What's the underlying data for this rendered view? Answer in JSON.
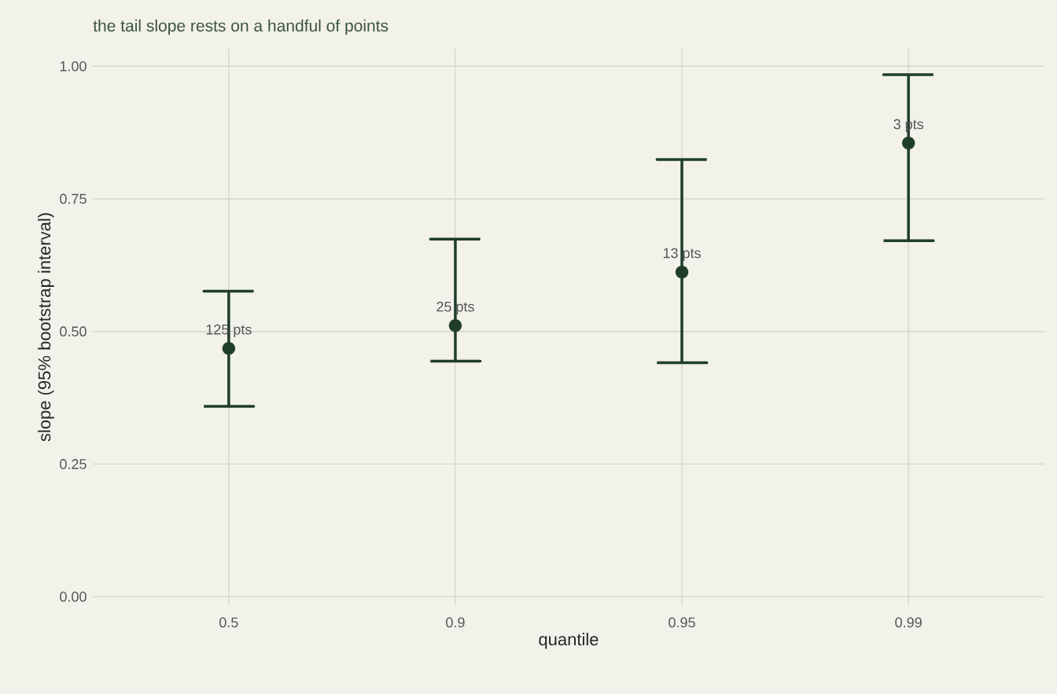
{
  "chart_data": {
    "type": "scatter",
    "title": "the tail slope rests on a handful of points",
    "xlabel": "quantile",
    "ylabel": "slope (95% bootstrap interval)",
    "categories": [
      "0.5",
      "0.9",
      "0.95",
      "0.99"
    ],
    "values": [
      0.468,
      0.511,
      0.612,
      0.855
    ],
    "errors": [
      [
        0.359,
        0.576
      ],
      [
        0.444,
        0.674
      ],
      [
        0.441,
        0.824
      ],
      [
        0.671,
        0.984
      ]
    ],
    "annotations": [
      {
        "text": "125 pts",
        "x": "0.5",
        "y": 0.468
      },
      {
        "text": "25 pts",
        "x": "0.9",
        "y": 0.511
      },
      {
        "text": "13 pts",
        "x": "0.95",
        "y": 0.612
      },
      {
        "text": "3 pts",
        "x": "0.99",
        "y": 0.855
      }
    ],
    "color": "#1f3d2b",
    "marker": "circle",
    "grid": true,
    "ylim": [
      -0.016,
      1.033
    ],
    "yticks": [
      {
        "value": 0,
        "label": "0.00"
      },
      {
        "value": 0.25,
        "label": "0.25"
      },
      {
        "value": 0.5,
        "label": "0.50"
      },
      {
        "value": 0.75,
        "label": "0.75"
      },
      {
        "value": 1,
        "label": "1.00"
      }
    ]
  }
}
